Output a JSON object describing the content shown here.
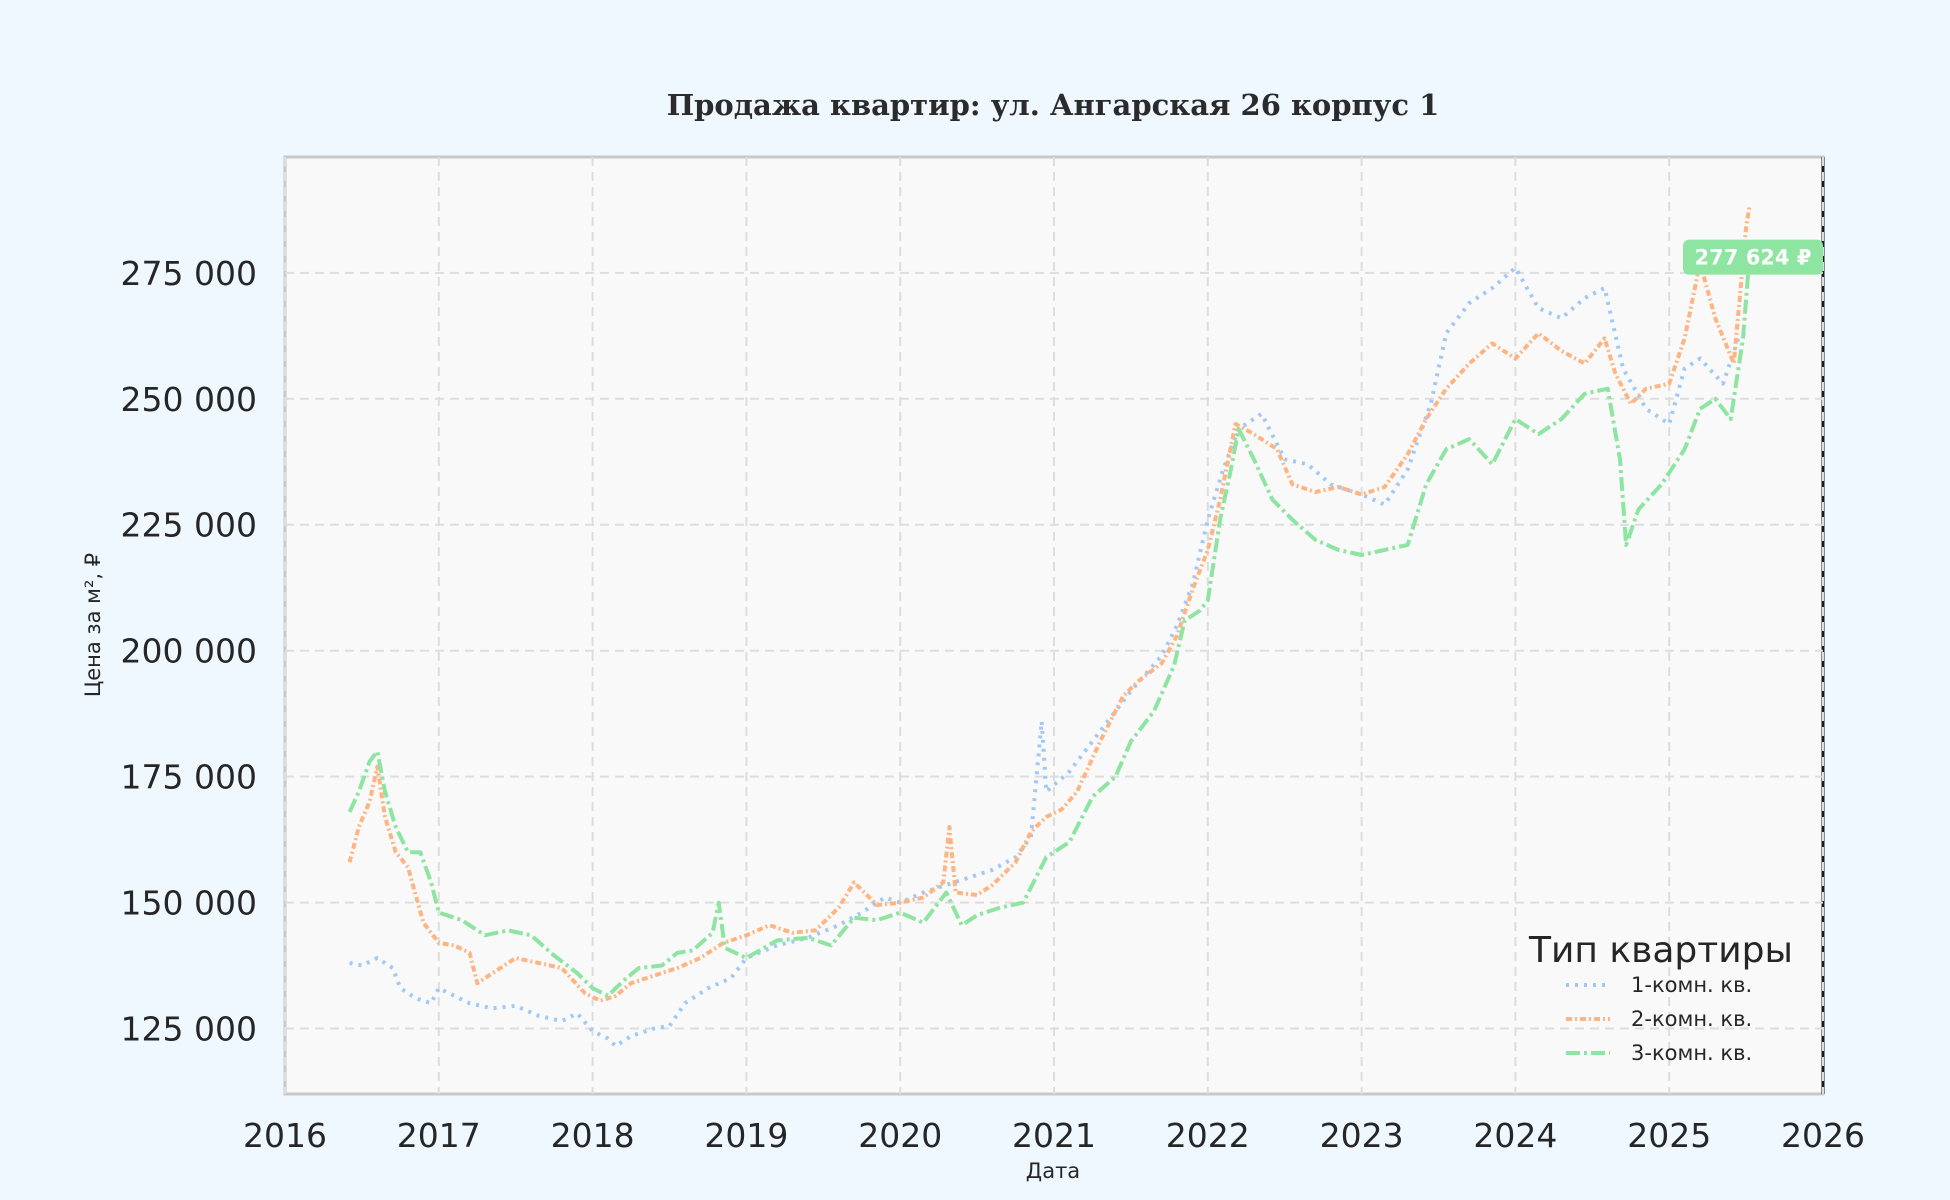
{
  "chart_data": {
    "type": "line",
    "title": "Продажа квартир: ул. Ангарская 26 корпус 1",
    "xlabel": "Дата",
    "ylabel": "Цена за м², ₽",
    "xlim": [
      2016.0,
      2026.0
    ],
    "ylim": [
      112000,
      298000
    ],
    "grid": true,
    "x_ticks": [
      2016,
      2017,
      2018,
      2019,
      2020,
      2021,
      2022,
      2023,
      2024,
      2025,
      2026
    ],
    "x_tick_labels": [
      "2016",
      "2017",
      "2018",
      "2019",
      "2020",
      "2021",
      "2022",
      "2023",
      "2024",
      "2025",
      "2026"
    ],
    "y_ticks": [
      125000,
      150000,
      175000,
      200000,
      225000,
      250000,
      275000
    ],
    "y_tick_labels": [
      "125 000",
      "150 000",
      "175 000",
      "200 000",
      "225 000",
      "250 000",
      "275 000"
    ],
    "legend": {
      "title": "Тип квартиры",
      "placement": "bottom-right"
    },
    "last_value_label": "277 624 ₽",
    "last_value": 277624,
    "series": [
      {
        "name": "1-комн. кв.",
        "color": "#a1c9f4",
        "style": "dotted",
        "points": [
          [
            2016.42,
            138000
          ],
          [
            2016.5,
            137500
          ],
          [
            2016.6,
            139000
          ],
          [
            2016.7,
            137000
          ],
          [
            2016.75,
            133000
          ],
          [
            2016.85,
            131000
          ],
          [
            2016.95,
            130000
          ],
          [
            2017.0,
            133000
          ],
          [
            2017.1,
            131500
          ],
          [
            2017.2,
            130000
          ],
          [
            2017.35,
            129000
          ],
          [
            2017.5,
            129500
          ],
          [
            2017.65,
            127500
          ],
          [
            2017.8,
            126500
          ],
          [
            2017.9,
            128000
          ],
          [
            2018.0,
            124500
          ],
          [
            2018.1,
            123000
          ],
          [
            2018.15,
            121500
          ],
          [
            2018.25,
            123500
          ],
          [
            2018.4,
            125000
          ],
          [
            2018.5,
            125500
          ],
          [
            2018.6,
            130000
          ],
          [
            2018.75,
            133000
          ],
          [
            2018.9,
            135000
          ],
          [
            2019.0,
            139000
          ],
          [
            2019.2,
            141500
          ],
          [
            2019.4,
            143000
          ],
          [
            2019.6,
            145500
          ],
          [
            2019.75,
            148000
          ],
          [
            2019.9,
            151000
          ],
          [
            2020.0,
            150000
          ],
          [
            2020.15,
            152000
          ],
          [
            2020.3,
            153500
          ],
          [
            2020.45,
            155000
          ],
          [
            2020.6,
            156500
          ],
          [
            2020.75,
            159000
          ],
          [
            2020.85,
            163000
          ],
          [
            2020.92,
            186000
          ],
          [
            2020.95,
            172000
          ],
          [
            2021.1,
            176000
          ],
          [
            2021.3,
            184000
          ],
          [
            2021.5,
            192000
          ],
          [
            2021.7,
            199000
          ],
          [
            2021.8,
            205000
          ],
          [
            2021.9,
            213000
          ],
          [
            2022.0,
            226000
          ],
          [
            2022.1,
            236000
          ],
          [
            2022.2,
            244000
          ],
          [
            2022.35,
            247000
          ],
          [
            2022.5,
            238000
          ],
          [
            2022.65,
            237000
          ],
          [
            2022.8,
            233000
          ],
          [
            2023.0,
            231000
          ],
          [
            2023.15,
            229000
          ],
          [
            2023.3,
            236000
          ],
          [
            2023.45,
            249000
          ],
          [
            2023.55,
            263000
          ],
          [
            2023.7,
            269000
          ],
          [
            2023.85,
            272000
          ],
          [
            2024.0,
            276000
          ],
          [
            2024.15,
            268000
          ],
          [
            2024.3,
            266000
          ],
          [
            2024.45,
            270000
          ],
          [
            2024.58,
            272000
          ],
          [
            2024.7,
            256000
          ],
          [
            2024.85,
            248000
          ],
          [
            2025.0,
            245000
          ],
          [
            2025.1,
            256000
          ],
          [
            2025.2,
            258000
          ],
          [
            2025.35,
            253000
          ],
          [
            2025.45,
            262000
          ],
          [
            2025.52,
            264000
          ]
        ]
      },
      {
        "name": "2-комн. кв.",
        "color": "#ffb482",
        "style": "dashdot-fine",
        "points": [
          [
            2016.42,
            158000
          ],
          [
            2016.48,
            165000
          ],
          [
            2016.55,
            170000
          ],
          [
            2016.6,
            177000
          ],
          [
            2016.65,
            167000
          ],
          [
            2016.72,
            160000
          ],
          [
            2016.8,
            157000
          ],
          [
            2016.9,
            146000
          ],
          [
            2017.0,
            142000
          ],
          [
            2017.1,
            141500
          ],
          [
            2017.2,
            140000
          ],
          [
            2017.25,
            134000
          ],
          [
            2017.35,
            136000
          ],
          [
            2017.5,
            139000
          ],
          [
            2017.65,
            138000
          ],
          [
            2017.8,
            137000
          ],
          [
            2017.95,
            132000
          ],
          [
            2018.05,
            130500
          ],
          [
            2018.15,
            131500
          ],
          [
            2018.25,
            134000
          ],
          [
            2018.4,
            135500
          ],
          [
            2018.55,
            137000
          ],
          [
            2018.7,
            139000
          ],
          [
            2018.85,
            142000
          ],
          [
            2019.0,
            143500
          ],
          [
            2019.15,
            145500
          ],
          [
            2019.3,
            144000
          ],
          [
            2019.45,
            144500
          ],
          [
            2019.6,
            149000
          ],
          [
            2019.7,
            154000
          ],
          [
            2019.85,
            149500
          ],
          [
            2020.0,
            150000
          ],
          [
            2020.15,
            151000
          ],
          [
            2020.28,
            154000
          ],
          [
            2020.32,
            165000
          ],
          [
            2020.36,
            152000
          ],
          [
            2020.5,
            151500
          ],
          [
            2020.6,
            153500
          ],
          [
            2020.75,
            158000
          ],
          [
            2020.85,
            164000
          ],
          [
            2020.95,
            167000
          ],
          [
            2021.05,
            168500
          ],
          [
            2021.15,
            172000
          ],
          [
            2021.3,
            182000
          ],
          [
            2021.45,
            191000
          ],
          [
            2021.55,
            194000
          ],
          [
            2021.7,
            197500
          ],
          [
            2021.8,
            203000
          ],
          [
            2021.9,
            212000
          ],
          [
            2022.0,
            220000
          ],
          [
            2022.08,
            230000
          ],
          [
            2022.18,
            245000
          ],
          [
            2022.3,
            243000
          ],
          [
            2022.45,
            240000
          ],
          [
            2022.55,
            233000
          ],
          [
            2022.7,
            231500
          ],
          [
            2022.85,
            232500
          ],
          [
            2023.0,
            231000
          ],
          [
            2023.15,
            232500
          ],
          [
            2023.3,
            239000
          ],
          [
            2023.42,
            246000
          ],
          [
            2023.55,
            252000
          ],
          [
            2023.7,
            257000
          ],
          [
            2023.85,
            261000
          ],
          [
            2024.0,
            258000
          ],
          [
            2024.15,
            263000
          ],
          [
            2024.3,
            259500
          ],
          [
            2024.45,
            257000
          ],
          [
            2024.58,
            262000
          ],
          [
            2024.65,
            255000
          ],
          [
            2024.75,
            249000
          ],
          [
            2024.85,
            252000
          ],
          [
            2025.0,
            253000
          ],
          [
            2025.1,
            262000
          ],
          [
            2025.2,
            277000
          ],
          [
            2025.3,
            266000
          ],
          [
            2025.42,
            257000
          ],
          [
            2025.5,
            284000
          ],
          [
            2025.52,
            288000
          ]
        ]
      },
      {
        "name": "3-комн. кв.",
        "color": "#8de5a1",
        "style": "dashdot",
        "points": [
          [
            2016.42,
            168000
          ],
          [
            2016.48,
            172000
          ],
          [
            2016.55,
            178000
          ],
          [
            2016.6,
            180000
          ],
          [
            2016.65,
            172000
          ],
          [
            2016.72,
            165000
          ],
          [
            2016.8,
            160000
          ],
          [
            2016.88,
            160000
          ],
          [
            2016.95,
            154000
          ],
          [
            2017.0,
            148000
          ],
          [
            2017.15,
            146500
          ],
          [
            2017.3,
            143500
          ],
          [
            2017.45,
            144500
          ],
          [
            2017.6,
            143500
          ],
          [
            2017.75,
            139500
          ],
          [
            2017.9,
            136000
          ],
          [
            2018.0,
            133000
          ],
          [
            2018.1,
            131500
          ],
          [
            2018.2,
            134500
          ],
          [
            2018.3,
            137000
          ],
          [
            2018.45,
            137500
          ],
          [
            2018.55,
            140000
          ],
          [
            2018.65,
            140500
          ],
          [
            2018.78,
            144000
          ],
          [
            2018.82,
            150000
          ],
          [
            2018.86,
            141000
          ],
          [
            2019.0,
            139000
          ],
          [
            2019.2,
            142500
          ],
          [
            2019.4,
            143000
          ],
          [
            2019.55,
            141500
          ],
          [
            2019.7,
            147000
          ],
          [
            2019.85,
            146500
          ],
          [
            2020.0,
            148000
          ],
          [
            2020.15,
            146000
          ],
          [
            2020.3,
            152000
          ],
          [
            2020.4,
            145500
          ],
          [
            2020.5,
            147500
          ],
          [
            2020.65,
            149000
          ],
          [
            2020.8,
            150000
          ],
          [
            2020.95,
            159000
          ],
          [
            2021.1,
            162000
          ],
          [
            2021.25,
            171000
          ],
          [
            2021.4,
            175000
          ],
          [
            2021.5,
            182000
          ],
          [
            2021.65,
            188000
          ],
          [
            2021.78,
            197000
          ],
          [
            2021.85,
            206000
          ],
          [
            2021.95,
            208000
          ],
          [
            2022.0,
            210000
          ],
          [
            2022.08,
            226000
          ],
          [
            2022.15,
            236000
          ],
          [
            2022.2,
            244000
          ],
          [
            2022.3,
            238000
          ],
          [
            2022.42,
            230000
          ],
          [
            2022.55,
            226000
          ],
          [
            2022.7,
            222000
          ],
          [
            2022.85,
            220000
          ],
          [
            2023.0,
            219000
          ],
          [
            2023.15,
            220000
          ],
          [
            2023.3,
            221000
          ],
          [
            2023.42,
            233000
          ],
          [
            2023.55,
            240000
          ],
          [
            2023.7,
            242000
          ],
          [
            2023.85,
            237000
          ],
          [
            2024.0,
            246000
          ],
          [
            2024.15,
            243000
          ],
          [
            2024.3,
            246000
          ],
          [
            2024.45,
            251000
          ],
          [
            2024.6,
            252000
          ],
          [
            2024.68,
            238000
          ],
          [
            2024.72,
            221000
          ],
          [
            2024.8,
            228000
          ],
          [
            2024.95,
            233000
          ],
          [
            2025.1,
            240000
          ],
          [
            2025.2,
            248000
          ],
          [
            2025.3,
            250000
          ],
          [
            2025.4,
            246000
          ],
          [
            2025.48,
            262000
          ],
          [
            2025.52,
            277624
          ]
        ]
      }
    ]
  }
}
